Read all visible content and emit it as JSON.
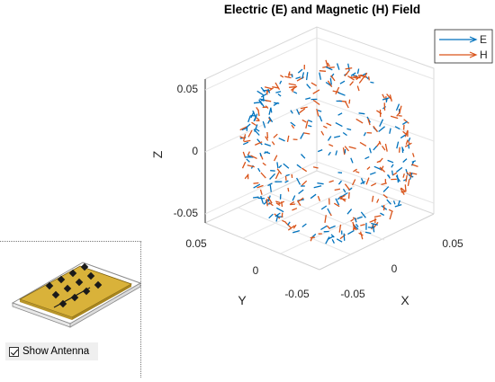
{
  "chart_data": {
    "type": "3d-quiver",
    "title": "Electric (E) and Magnetic (H) Field",
    "xlabel": "X",
    "ylabel": "Y",
    "zlabel": "Z",
    "x_ticks": [
      "-0.05",
      "0",
      "0.05"
    ],
    "y_ticks": [
      "-0.05",
      "0",
      "0.05"
    ],
    "z_ticks": [
      "-0.05",
      "0",
      "0.05"
    ],
    "xlim": [
      -0.07,
      0.07
    ],
    "ylim": [
      -0.07,
      0.07
    ],
    "zlim": [
      -0.07,
      0.07
    ],
    "sphere_radius": 0.065,
    "grid": true,
    "legend_placement": "top-right",
    "series": [
      {
        "name": "E",
        "color": "#0072BD"
      },
      {
        "name": "H",
        "color": "#D95319"
      }
    ]
  },
  "inset": {
    "show_antenna_label": "Show Antenna",
    "show_antenna_checked": true
  }
}
